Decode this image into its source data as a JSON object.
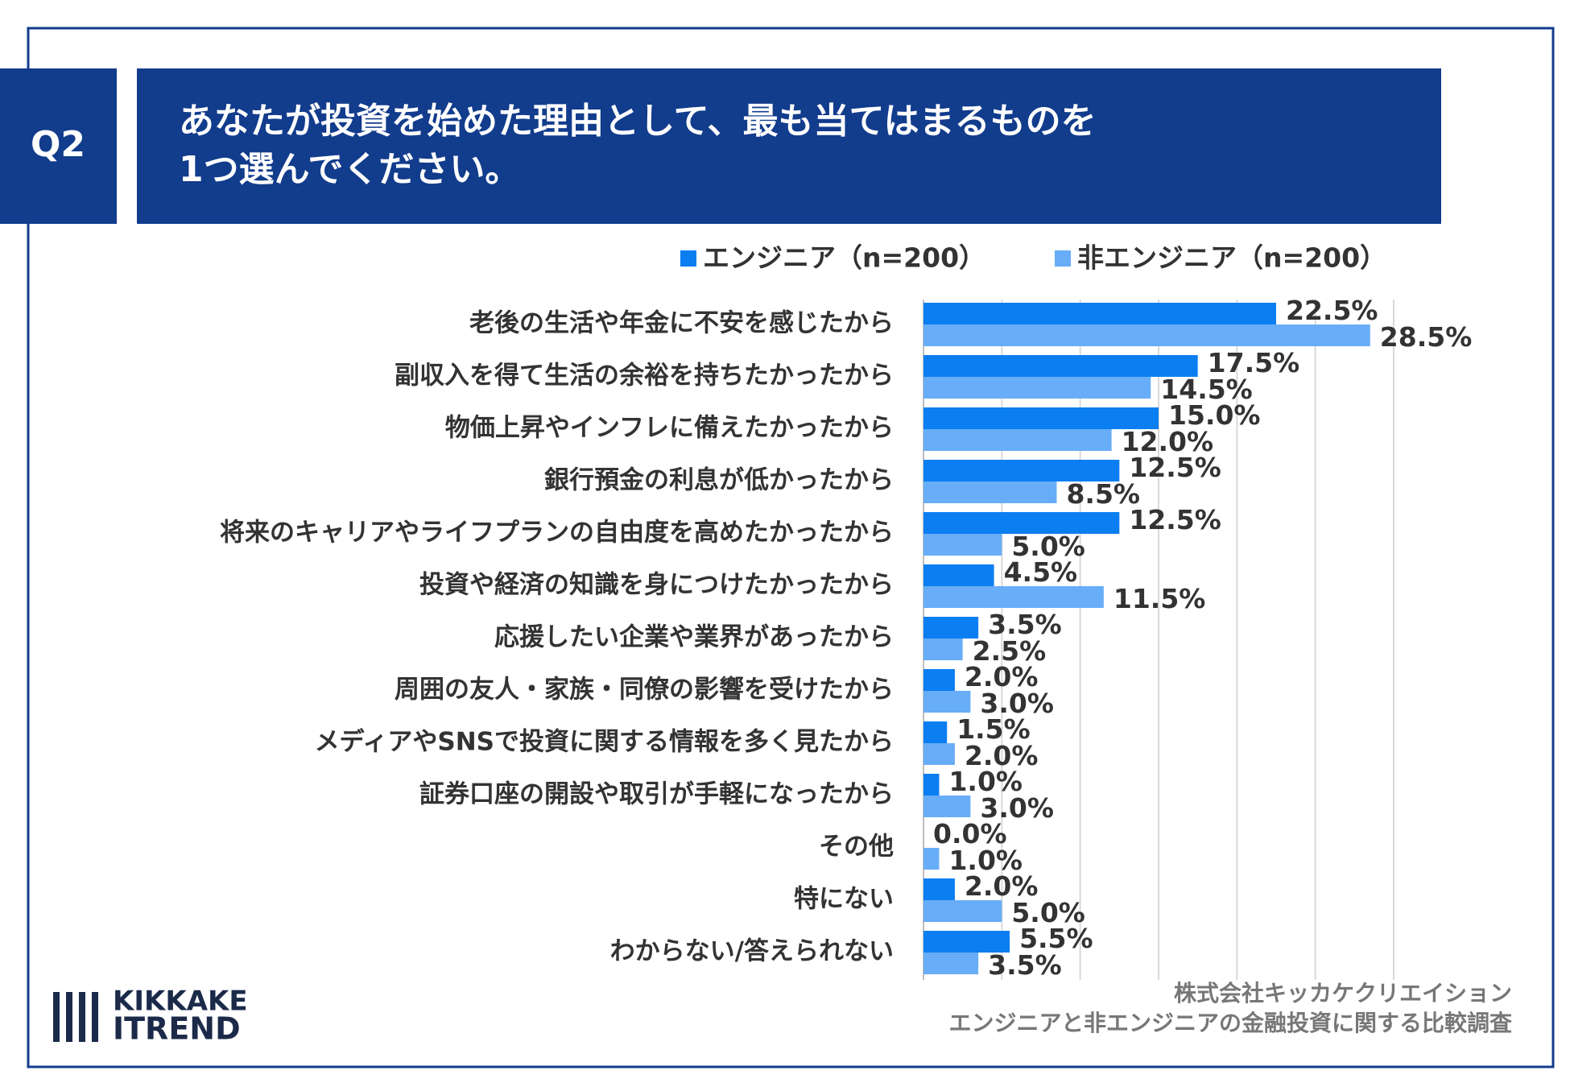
{
  "header": {
    "badge": "Q2",
    "title": [
      "あなたが投資を始めた理由として、最も当てはまるものを",
      "1つ選んでください。"
    ]
  },
  "chart_data": {
    "type": "hbar",
    "categories": [
      "老後の生活や年金に不安を感じたから",
      "副収入を得て生活の余裕を持ちたかったから",
      "物価上昇やインフレに備えたかったから",
      "銀行預金の利息が低かったから",
      "将来のキャリアやライフプランの自由度を高めたかったから",
      "投資や経済の知識を身につけたかったから",
      "応援したい企業や業界があったから",
      "周囲の友人・家族・同僚の影響を受けたから",
      "メディアやSNSで投資に関する情報を多く見たから",
      "証券口座の開設や取引が手軽になったから",
      "その他",
      "特にない",
      "わからない/答えられない"
    ],
    "series": [
      {
        "name": "エンジニア（n=200）",
        "color": "#0b7ef2",
        "values": [
          22.5,
          17.5,
          15.0,
          12.5,
          12.5,
          4.5,
          3.5,
          2.0,
          1.5,
          1.0,
          0.0,
          2.0,
          5.5
        ],
        "value_labels": [
          "22.5%",
          "17.5%",
          "15.0%",
          "12.5%",
          "12.5%",
          "4.5%",
          "3.5%",
          "2.0%",
          "1.5%",
          "1.0%",
          "0.0%",
          "2.0%",
          "5.5%"
        ]
      },
      {
        "name": "非エンジニア（n=200）",
        "color": "#68adf7",
        "values": [
          28.5,
          14.5,
          12.0,
          8.5,
          5.0,
          11.5,
          2.5,
          3.0,
          2.0,
          3.0,
          1.0,
          5.0,
          3.5
        ],
        "value_labels": [
          "28.5%",
          "14.5%",
          "12.0%",
          "8.5%",
          "5.0%",
          "11.5%",
          "2.5%",
          "3.0%",
          "2.0%",
          "3.0%",
          "1.0%",
          "5.0%",
          "3.5%"
        ]
      }
    ],
    "xlim": [
      0,
      30
    ],
    "xticks": [
      0,
      5,
      10,
      15,
      20,
      25,
      30
    ],
    "grid": true
  },
  "footer": {
    "logo": [
      "KIKKAKE",
      "ITREND"
    ],
    "source": [
      "株式会社キッカケクリエイション",
      "エンジニアと非エンジニアの金融投資に関する比較調査"
    ]
  }
}
